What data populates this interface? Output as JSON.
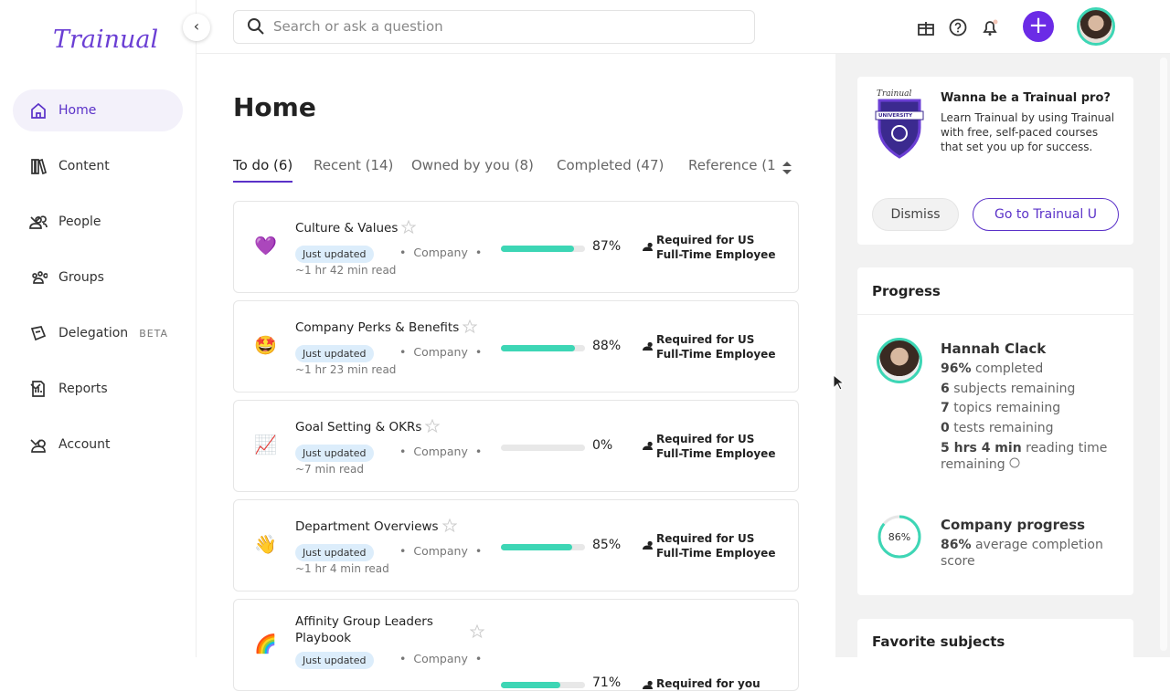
{
  "brand": "Trainual",
  "search_placeholder": "Search or ask a question",
  "nav": [
    {
      "label": "Home"
    },
    {
      "label": "Content"
    },
    {
      "label": "People"
    },
    {
      "label": "Groups"
    },
    {
      "label": "Delegation",
      "badge": "BETA"
    },
    {
      "label": "Reports"
    },
    {
      "label": "Account"
    }
  ],
  "page_title": "Home",
  "tabs": [
    "To do (6)",
    "Recent (14)",
    "Owned by you (8)",
    "Completed (47)",
    "Reference (1"
  ],
  "items": [
    {
      "emoji": "💜",
      "title": "Culture & Values",
      "tag": "Just updated",
      "owner": "Company",
      "read": "~1 hr 42 min read",
      "progress": {
        "value": 87,
        "label": "87%"
      },
      "requirement": "Required for US Full-Time Employee"
    },
    {
      "emoji": "🤩",
      "title": "Company Perks & Benefits",
      "tag": "Just updated",
      "owner": "Company",
      "read": "~1 hr 23 min read",
      "progress": {
        "value": 88,
        "label": "88%"
      },
      "requirement": "Required for US Full-Time Employee"
    },
    {
      "emoji": "📈",
      "title": "Goal Setting & OKRs",
      "tag": "Just updated",
      "owner": "Company",
      "read": "~7 min read",
      "progress": {
        "value": 0,
        "label": "0%"
      },
      "requirement": "Required for US Full-Time Employee"
    },
    {
      "emoji": "👋",
      "title": "Department Overviews",
      "tag": "Just updated",
      "owner": "Company",
      "read": "~1 hr 4 min read",
      "progress": {
        "value": 85,
        "label": "85%"
      },
      "requirement": "Required for US Full-Time Employee"
    },
    {
      "emoji": "🌈",
      "title": "Affinity Group Leaders Playbook",
      "tag": "Just updated",
      "owner": "Company",
      "read": "",
      "progress": {
        "value": 71,
        "label": "71%"
      },
      "requirement": "Required for you"
    }
  ],
  "promo": {
    "logo_text": "Trainual",
    "logo_sub": "UNIVERSITY",
    "title": "Wanna be a Trainual pro?",
    "body": "Learn Trainual by using Trainual with free, self-paced courses that set you up for success.",
    "dismiss": "Dismiss",
    "cta": "Go to Trainual U"
  },
  "progress_card": {
    "title": "Progress",
    "name": "Hannah Clack",
    "stats": [
      {
        "bold": "96%",
        "text": "completed"
      },
      {
        "bold": "6",
        "text": "subjects remaining"
      },
      {
        "bold": "7",
        "text": "topics remaining"
      },
      {
        "bold": "0",
        "text": "tests remaining"
      },
      {
        "bold": "5 hrs 4 min",
        "text": "reading time remaining"
      }
    ],
    "company": {
      "ring": {
        "value": 86,
        "label": "86%"
      },
      "title": "Company progress",
      "bold": "86%",
      "text": "average completion score"
    }
  },
  "favorites_title": "Favorite subjects"
}
